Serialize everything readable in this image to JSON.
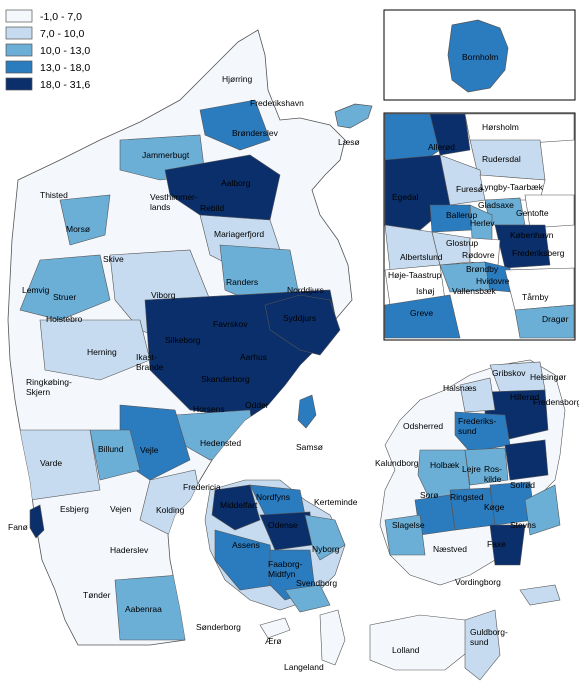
{
  "legend": [
    {
      "label": "-1,0 - 7,0",
      "color": "#f4f8fd"
    },
    {
      "label": "7,0 - 10,0",
      "color": "#c6dbef"
    },
    {
      "label": "10,0 - 13,0",
      "color": "#6baed6"
    },
    {
      "label": "13,0 - 18,0",
      "color": "#2b7bbf"
    },
    {
      "label": "18,0 - 31,6",
      "color": "#0b2f6b"
    }
  ],
  "insets": {
    "bornholm_label": "Bornholm",
    "copenhagen_labels": [
      "Allerød",
      "Hørsholm",
      "Rudersdal",
      "Egedal",
      "Furesø",
      "Lyngby-Taarbæk",
      "Gladsaxe",
      "Gentofte",
      "Ballerup",
      "Herlev",
      "København",
      "Glostrup",
      "Frederiksberg",
      "Albertslund",
      "Rødovre",
      "Brøndby",
      "Høje-Taastrup",
      "Hvidovre",
      "Ishøj",
      "Vallensbæk",
      "Tårnby",
      "Greve",
      "Dragør"
    ]
  },
  "regions": [
    {
      "name": "Hjørring",
      "cls": 0
    },
    {
      "name": "Frederikshavn",
      "cls": 0
    },
    {
      "name": "Læsø",
      "cls": 2
    },
    {
      "name": "Brønderslev",
      "cls": 3
    },
    {
      "name": "Jammerbugt",
      "cls": 2
    },
    {
      "name": "Aalborg",
      "cls": 4
    },
    {
      "name": "Thisted",
      "cls": 0
    },
    {
      "name": "Rebild",
      "cls": 4
    },
    {
      "name": "Vesthimmer-lands",
      "cls": 0
    },
    {
      "name": "Mariagerfjord",
      "cls": 1
    },
    {
      "name": "Morsø",
      "cls": 2
    },
    {
      "name": "Skive",
      "cls": 0
    },
    {
      "name": "Lemvig",
      "cls": 0
    },
    {
      "name": "Struer",
      "cls": 2
    },
    {
      "name": "Viborg",
      "cls": 1
    },
    {
      "name": "Randers",
      "cls": 2
    },
    {
      "name": "Norddjurs",
      "cls": 0
    },
    {
      "name": "Holstebro",
      "cls": 2
    },
    {
      "name": "Favrskov",
      "cls": 4
    },
    {
      "name": "Syddjurs",
      "cls": 4
    },
    {
      "name": "Herning",
      "cls": 1
    },
    {
      "name": "Silkeborg",
      "cls": 4
    },
    {
      "name": "Ikast-Brande",
      "cls": 0
    },
    {
      "name": "Aarhus",
      "cls": 4
    },
    {
      "name": "Ringkøbing-Skjern",
      "cls": 0
    },
    {
      "name": "Skanderborg",
      "cls": 4
    },
    {
      "name": "Horsens",
      "cls": 4
    },
    {
      "name": "Odder",
      "cls": 4
    },
    {
      "name": "Hedensted",
      "cls": 2
    },
    {
      "name": "Billund",
      "cls": 2
    },
    {
      "name": "Vejle",
      "cls": 3
    },
    {
      "name": "Varde",
      "cls": 1
    },
    {
      "name": "Samsø",
      "cls": 3
    },
    {
      "name": "Fredericia",
      "cls": 1
    },
    {
      "name": "Esbjerg",
      "cls": 0
    },
    {
      "name": "Vejen",
      "cls": 0
    },
    {
      "name": "Kolding",
      "cls": 1
    },
    {
      "name": "Fanø",
      "cls": 4
    },
    {
      "name": "Middelfart",
      "cls": 4
    },
    {
      "name": "Nordfyns",
      "cls": 3
    },
    {
      "name": "Kerteminde",
      "cls": 2
    },
    {
      "name": "Odense",
      "cls": 4
    },
    {
      "name": "Haderslev",
      "cls": 0
    },
    {
      "name": "Assens",
      "cls": 3
    },
    {
      "name": "Nyborg",
      "cls": 1
    },
    {
      "name": "Faaborg-Midtfyn",
      "cls": 3
    },
    {
      "name": "Tønder",
      "cls": 0
    },
    {
      "name": "Svendborg",
      "cls": 2
    },
    {
      "name": "Aabenraa",
      "cls": 2
    },
    {
      "name": "Sønderborg",
      "cls": 1
    },
    {
      "name": "Ærø",
      "cls": 0
    },
    {
      "name": "Langeland",
      "cls": 0
    },
    {
      "name": "Gribskov",
      "cls": 1
    },
    {
      "name": "Helsingør",
      "cls": 2
    },
    {
      "name": "Halsnæs",
      "cls": 1
    },
    {
      "name": "Hillerød",
      "cls": 4
    },
    {
      "name": "Fredensborg",
      "cls": 3
    },
    {
      "name": "Odsherred",
      "cls": 0
    },
    {
      "name": "Frederiks-sund",
      "cls": 2
    },
    {
      "name": "Kalundborg",
      "cls": 0
    },
    {
      "name": "Holbæk",
      "cls": 2
    },
    {
      "name": "Lejre",
      "cls": 2
    },
    {
      "name": "Ros-kilde",
      "cls": 2
    },
    {
      "name": "Solrød",
      "cls": 4
    },
    {
      "name": "Sorø",
      "cls": 3
    },
    {
      "name": "Ringsted",
      "cls": 3
    },
    {
      "name": "Køge",
      "cls": 3
    },
    {
      "name": "Slagelse",
      "cls": 2
    },
    {
      "name": "Stevns",
      "cls": 2
    },
    {
      "name": "Næstved",
      "cls": 0
    },
    {
      "name": "Faxe",
      "cls": 4
    },
    {
      "name": "Vordingborg",
      "cls": 1
    },
    {
      "name": "Guldborg-sund",
      "cls": 1
    },
    {
      "name": "Lolland",
      "cls": 0
    },
    {
      "name": "Bornholm",
      "cls": 3
    }
  ]
}
